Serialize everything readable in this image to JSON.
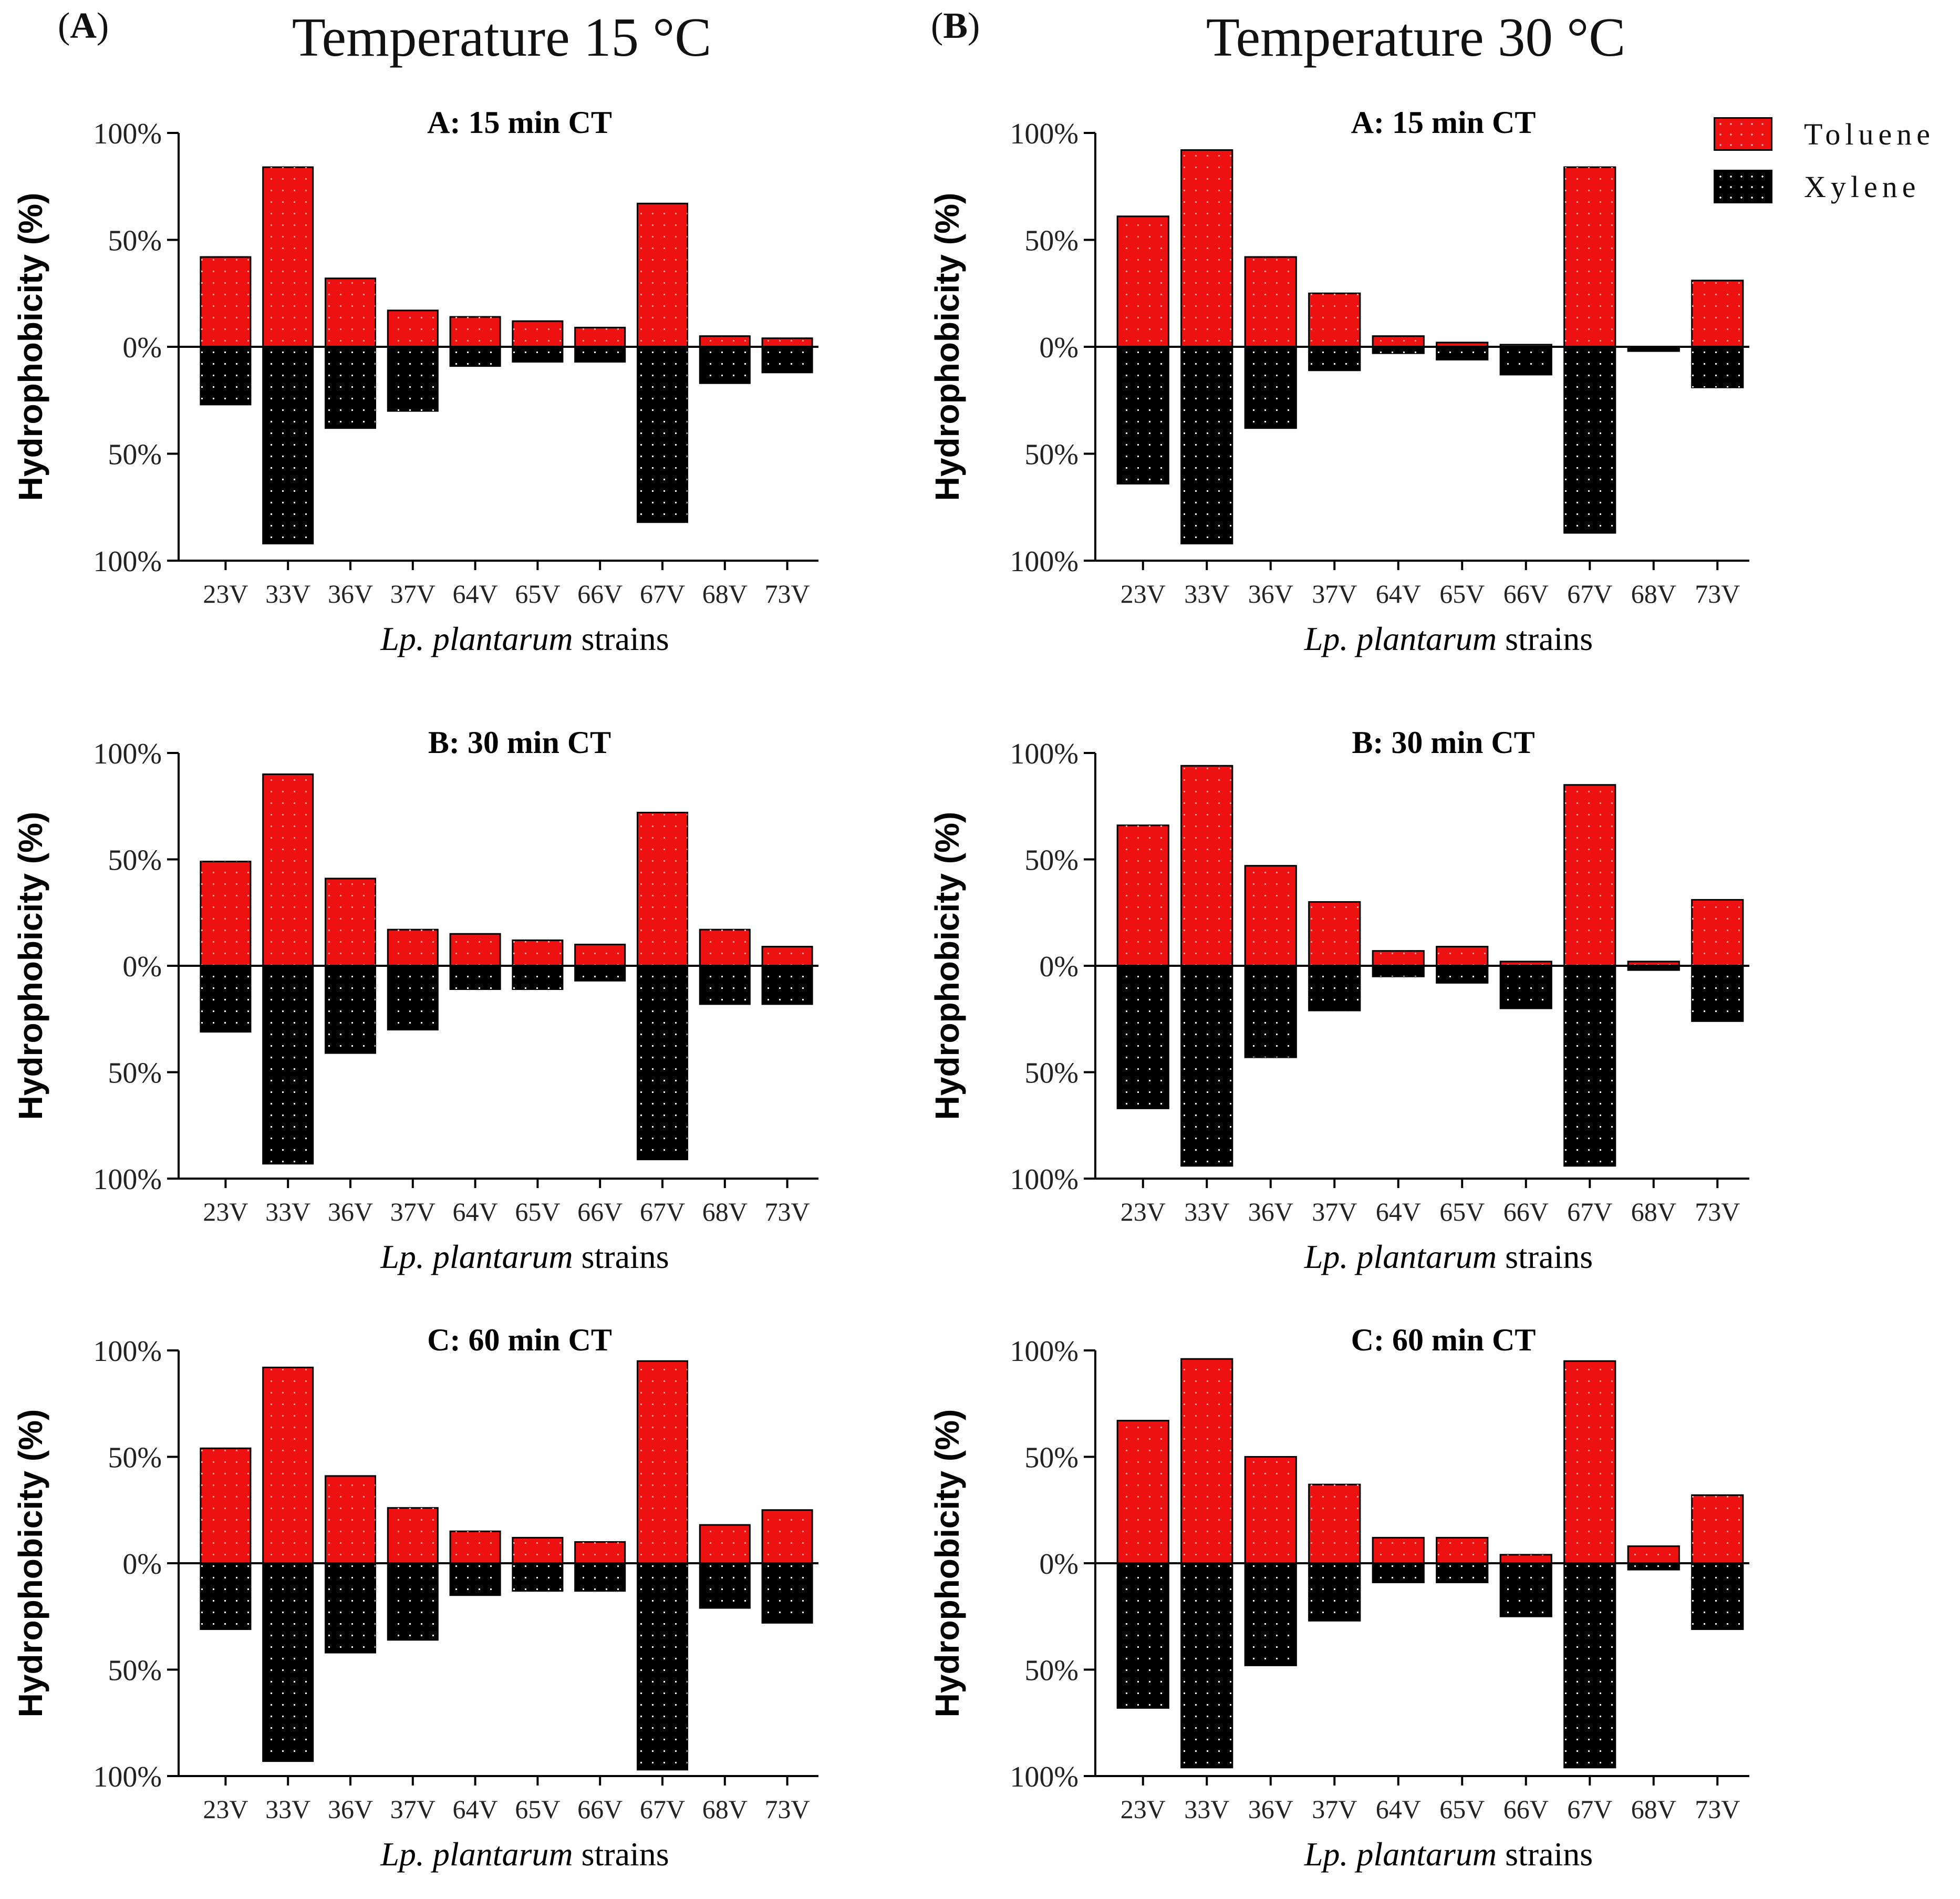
{
  "columns": [
    {
      "panel_letter": "A",
      "title": "Temperature 15 °C"
    },
    {
      "panel_letter": "B",
      "title": "Temperature 30 °C"
    }
  ],
  "legend": [
    {
      "label": "Toluene",
      "color": "#ee1111"
    },
    {
      "label": "Xylene",
      "color": "#000000"
    }
  ],
  "colors": {
    "toluene": "#ee1111",
    "xylene": "#000000",
    "dots": "#ffffff"
  },
  "chart_data": [
    {
      "type": "bar",
      "column": "Temperature 15 °C",
      "title": "A: 15 min CT",
      "categories": [
        "23V",
        "33V",
        "36V",
        "37V",
        "64V",
        "65V",
        "66V",
        "67V",
        "68V",
        "73V"
      ],
      "series": [
        {
          "name": "Toluene",
          "values": [
            42,
            84,
            32,
            17,
            14,
            12,
            9,
            67,
            5,
            4
          ]
        },
        {
          "name": "Xylene",
          "values": [
            27,
            92,
            38,
            30,
            9,
            7,
            7,
            82,
            17,
            12
          ]
        }
      ],
      "xlabel_italic": "Lp. plantarum",
      "xlabel_rest": " strains",
      "ylabel": "Hydrophobicity (%)",
      "yticks": [
        "100%",
        "50%",
        "0%",
        "50%",
        "100%"
      ],
      "ylim": [
        -100,
        100
      ]
    },
    {
      "type": "bar",
      "column": "Temperature 30 °C",
      "title": "A: 15 min CT",
      "categories": [
        "23V",
        "33V",
        "36V",
        "37V",
        "64V",
        "65V",
        "66V",
        "67V",
        "68V",
        "73V"
      ],
      "series": [
        {
          "name": "Toluene",
          "values": [
            61,
            92,
            42,
            25,
            5,
            2,
            1,
            84,
            0,
            31
          ]
        },
        {
          "name": "Xylene",
          "values": [
            64,
            92,
            38,
            11,
            3,
            6,
            13,
            87,
            2,
            19
          ]
        }
      ],
      "xlabel_italic": "Lp. plantarum",
      "xlabel_rest": " strains",
      "ylabel": "Hydrophobicity (%)",
      "yticks": [
        "100%",
        "50%",
        "0%",
        "50%",
        "100%"
      ],
      "ylim": [
        -100,
        100
      ]
    },
    {
      "type": "bar",
      "column": "Temperature 15 °C",
      "title": "B: 30 min CT",
      "categories": [
        "23V",
        "33V",
        "36V",
        "37V",
        "64V",
        "65V",
        "66V",
        "67V",
        "68V",
        "73V"
      ],
      "series": [
        {
          "name": "Toluene",
          "values": [
            49,
            90,
            41,
            17,
            15,
            12,
            10,
            72,
            17,
            9
          ]
        },
        {
          "name": "Xylene",
          "values": [
            31,
            93,
            41,
            30,
            11,
            11,
            7,
            91,
            18,
            18
          ]
        }
      ],
      "xlabel_italic": "Lp. plantarum",
      "xlabel_rest": " strains",
      "ylabel": "Hydrophobicity (%)",
      "yticks": [
        "100%",
        "50%",
        "0%",
        "50%",
        "100%"
      ],
      "ylim": [
        -100,
        100
      ]
    },
    {
      "type": "bar",
      "column": "Temperature 30 °C",
      "title": "B: 30 min CT",
      "categories": [
        "23V",
        "33V",
        "36V",
        "37V",
        "64V",
        "65V",
        "66V",
        "67V",
        "68V",
        "73V"
      ],
      "series": [
        {
          "name": "Toluene",
          "values": [
            66,
            94,
            47,
            30,
            7,
            9,
            2,
            85,
            2,
            31
          ]
        },
        {
          "name": "Xylene",
          "values": [
            67,
            94,
            43,
            21,
            5,
            8,
            20,
            94,
            2,
            26
          ]
        }
      ],
      "xlabel_italic": "Lp. plantarum",
      "xlabel_rest": " strains",
      "ylabel": "Hydrophobicity (%)",
      "yticks": [
        "100%",
        "50%",
        "0%",
        "50%",
        "100%"
      ],
      "ylim": [
        -100,
        100
      ]
    },
    {
      "type": "bar",
      "column": "Temperature 15 °C",
      "title": "C: 60 min CT",
      "categories": [
        "23V",
        "33V",
        "36V",
        "37V",
        "64V",
        "65V",
        "66V",
        "67V",
        "68V",
        "73V"
      ],
      "series": [
        {
          "name": "Toluene",
          "values": [
            54,
            92,
            41,
            26,
            15,
            12,
            10,
            95,
            18,
            25
          ]
        },
        {
          "name": "Xylene",
          "values": [
            31,
            93,
            42,
            36,
            15,
            13,
            13,
            97,
            21,
            28
          ]
        }
      ],
      "xlabel_italic": "Lp. plantarum",
      "xlabel_rest": " strains",
      "ylabel": "Hydrophobicity (%)",
      "yticks": [
        "100%",
        "50%",
        "0%",
        "50%",
        "100%"
      ],
      "ylim": [
        -100,
        100
      ]
    },
    {
      "type": "bar",
      "column": "Temperature 30 °C",
      "title": "C: 60 min CT",
      "categories": [
        "23V",
        "33V",
        "36V",
        "37V",
        "64V",
        "65V",
        "66V",
        "67V",
        "68V",
        "73V"
      ],
      "series": [
        {
          "name": "Toluene",
          "values": [
            67,
            96,
            50,
            37,
            12,
            12,
            4,
            95,
            8,
            32
          ]
        },
        {
          "name": "Xylene",
          "values": [
            68,
            96,
            48,
            27,
            9,
            9,
            25,
            96,
            3,
            31
          ]
        }
      ],
      "xlabel_italic": "Lp. plantarum",
      "xlabel_rest": " strains",
      "ylabel": "Hydrophobicity (%)",
      "yticks": [
        "100%",
        "50%",
        "0%",
        "50%",
        "100%"
      ],
      "ylim": [
        -100,
        100
      ]
    }
  ]
}
